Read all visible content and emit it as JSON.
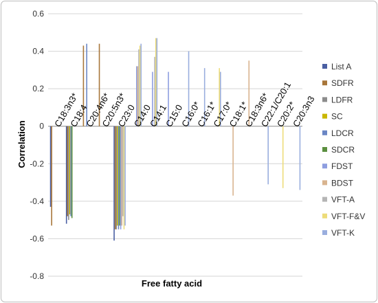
{
  "chart_data": {
    "type": "bar",
    "xlabel": "Free fatty acid",
    "ylabel": "Correlation",
    "ylim": [
      -0.8,
      0.6
    ],
    "yticks": [
      "-0.8",
      "-0.6",
      "-0.4",
      "-0.2",
      "0",
      "0.2",
      "0.4",
      "0.6"
    ],
    "grid": true,
    "legend_position": "right",
    "categories": [
      "C18:3n3*",
      "C18:4",
      "C20:4n6*",
      "C20:5n3*",
      "C23:0",
      "C14:0",
      "C14:1",
      "C15:0",
      "C16:0*",
      "C16:1*",
      "C17:0*",
      "C18:1*",
      "C18:3n6*",
      "C22:1/C20:1",
      "C20:2*",
      "C20:3n3"
    ],
    "series": [
      {
        "name": "List A",
        "color": "#4a5fa3",
        "values": [
          -0.43,
          -0.52,
          0,
          0,
          -0.61,
          0,
          0,
          0,
          0,
          0,
          0,
          0,
          0,
          0,
          0,
          0
        ]
      },
      {
        "name": "SDFR",
        "color": "#a8763a",
        "values": [
          -0.53,
          -0.48,
          0.43,
          0.44,
          -0.55,
          0,
          0,
          0,
          0,
          0,
          0,
          0,
          0,
          0,
          0,
          0
        ]
      },
      {
        "name": "LDFR",
        "color": "#8c8c8c",
        "values": [
          0,
          -0.5,
          0,
          0,
          -0.55,
          0,
          0,
          0,
          0,
          0,
          0,
          0,
          0,
          0,
          0,
          0
        ]
      },
      {
        "name": "SC",
        "color": "#c9b700",
        "values": [
          0,
          -0.47,
          0,
          0,
          -0.53,
          0,
          0,
          0,
          0,
          0,
          0,
          0,
          0,
          0,
          0,
          0
        ]
      },
      {
        "name": "LDCR",
        "color": "#6a86c4",
        "values": [
          0,
          -0.48,
          0.44,
          0,
          -0.55,
          0,
          0,
          0,
          0,
          0,
          0,
          0,
          0,
          0,
          0,
          0
        ]
      },
      {
        "name": "SDCR",
        "color": "#5b8f3f",
        "values": [
          0,
          -0.49,
          0,
          0,
          -0.53,
          0,
          0,
          0,
          0,
          0,
          0,
          0,
          0,
          0,
          0,
          0
        ]
      },
      {
        "name": "FDST",
        "color": "#8e9ee0",
        "values": [
          0,
          0,
          0,
          0,
          -0.55,
          0.32,
          0.29,
          0.29,
          0,
          0,
          0,
          0,
          0,
          0,
          0,
          0
        ]
      },
      {
        "name": "BDST",
        "color": "#d9b48f",
        "values": [
          0,
          0,
          0,
          0,
          -0.53,
          0.32,
          0,
          0,
          0,
          0,
          0,
          -0.37,
          0.35,
          0,
          0,
          0
        ]
      },
      {
        "name": "VFT-A",
        "color": "#b5b5b5",
        "values": [
          0,
          0,
          0,
          0,
          -0.48,
          0.41,
          0.37,
          0,
          0,
          0,
          0,
          0,
          0,
          0,
          0,
          0
        ]
      },
      {
        "name": "VFT-F&V",
        "color": "#eddc7a",
        "values": [
          0,
          0,
          0,
          0,
          -0.55,
          0.43,
          0.47,
          0,
          0,
          0,
          0.31,
          0,
          0,
          0,
          -0.33,
          0
        ]
      },
      {
        "name": "VFT-K",
        "color": "#9aaede",
        "values": [
          0,
          0,
          0,
          0,
          -0.53,
          0.44,
          0.47,
          0,
          0.4,
          0.31,
          0.29,
          0,
          0,
          -0.31,
          0,
          -0.34
        ]
      }
    ]
  }
}
